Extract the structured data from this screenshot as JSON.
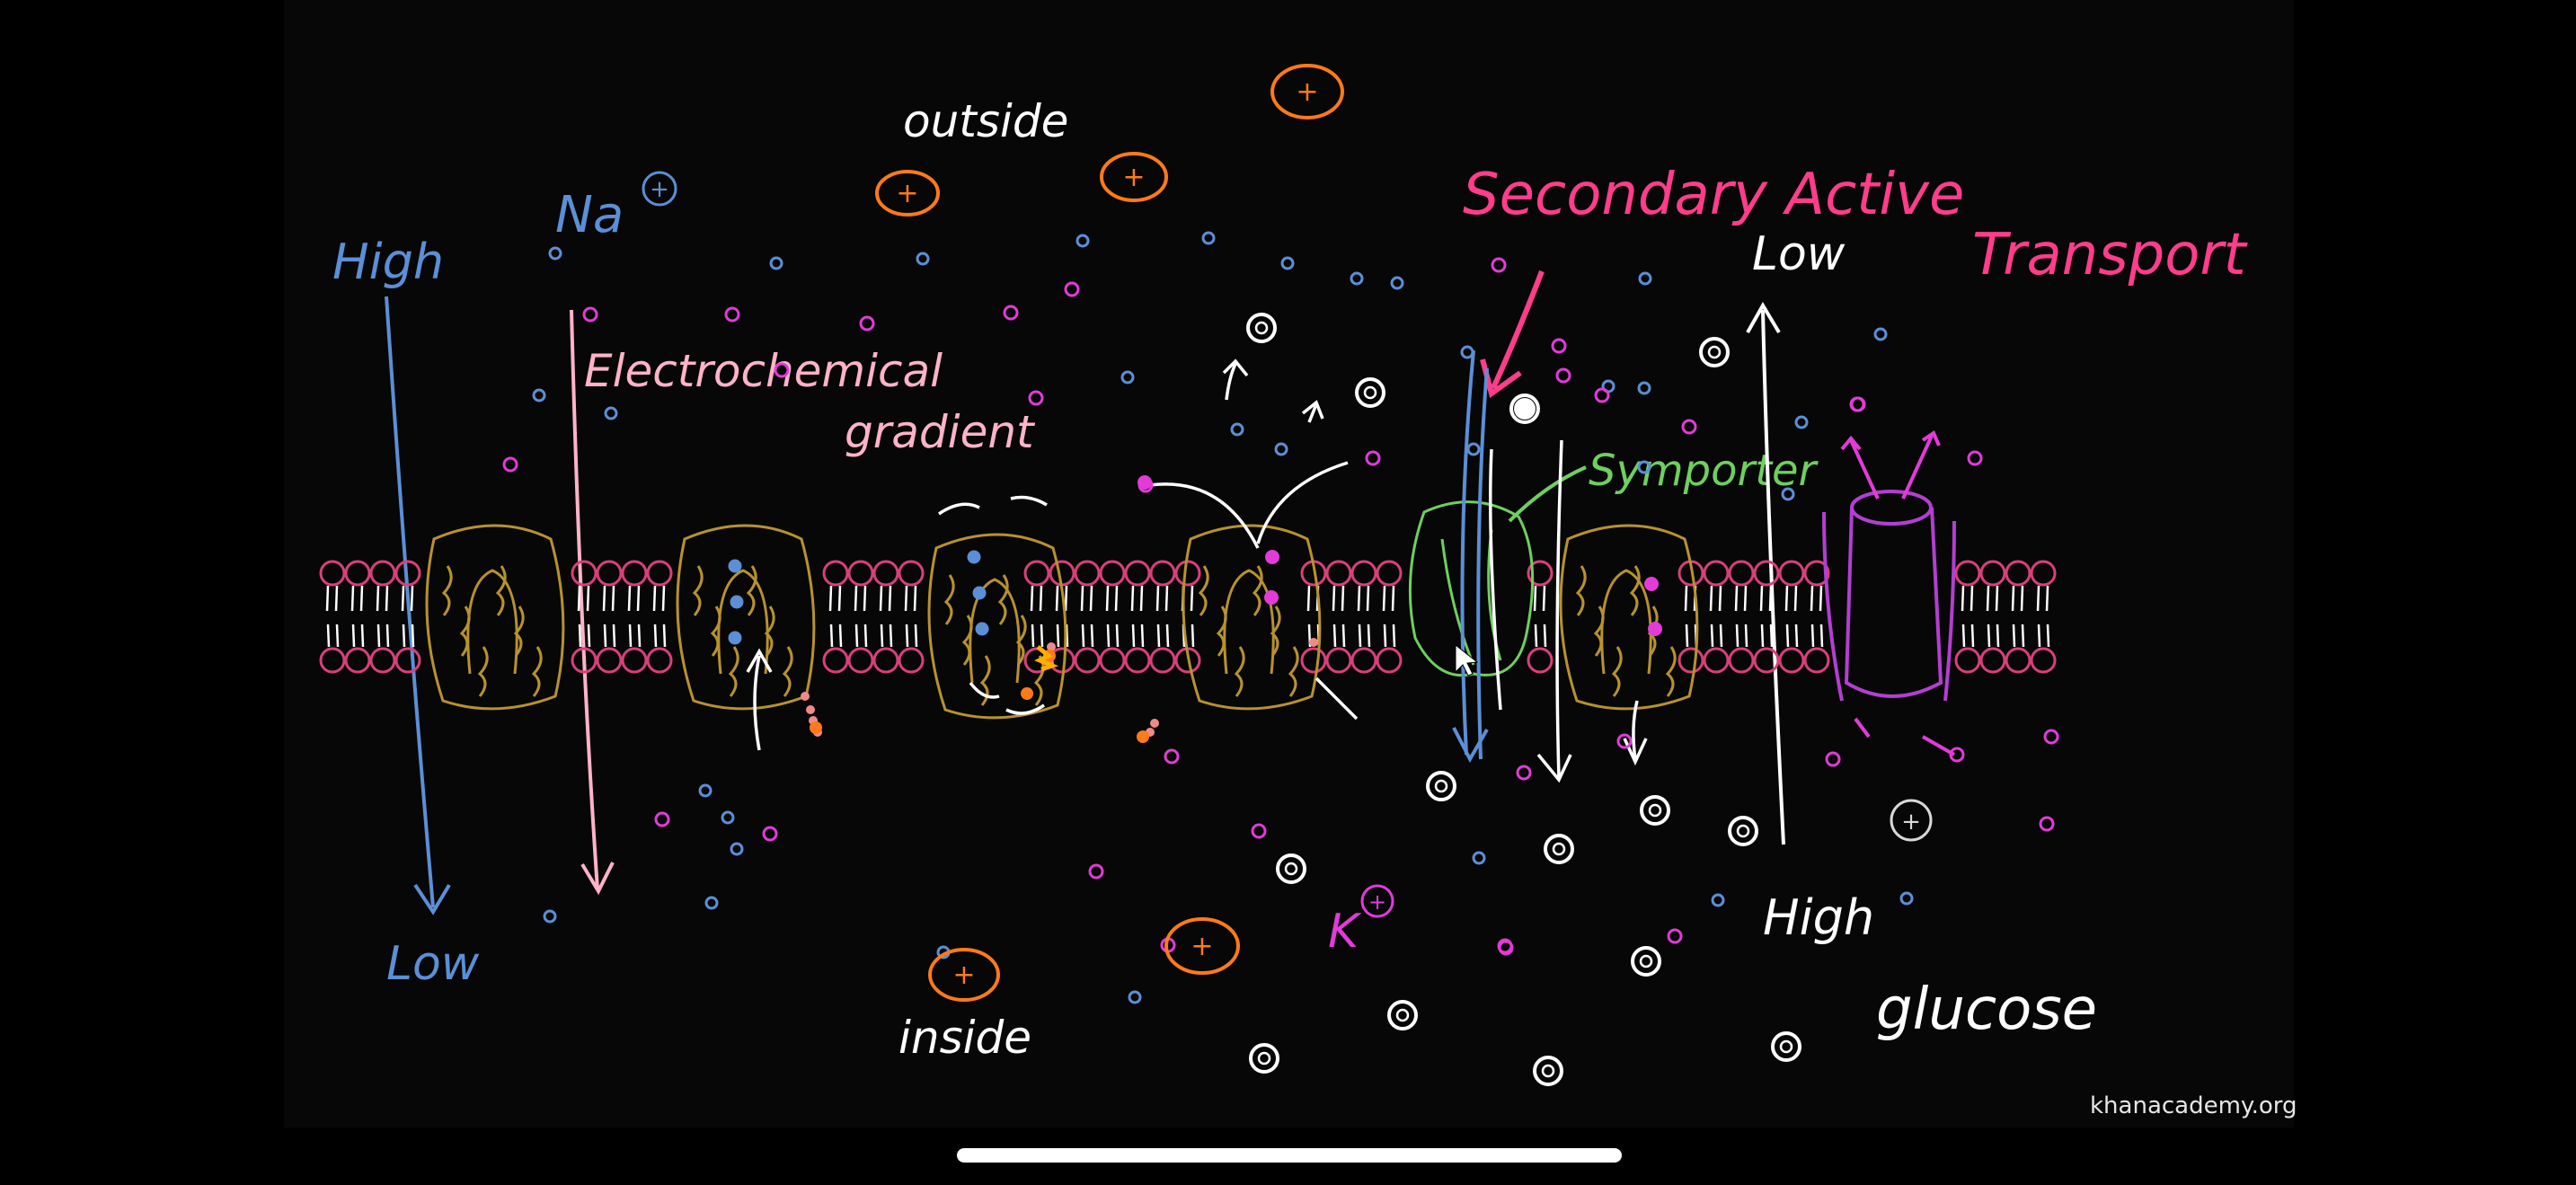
{
  "labels": {
    "outside": "outside",
    "inside": "inside",
    "high_left": "High",
    "low_left": "Low",
    "na": "Na",
    "k": "K",
    "electrochemical": "Electrochemical",
    "gradient": "gradient",
    "title_line1": "Secondary Active",
    "title_line2": "Transport",
    "low_right": "Low",
    "high_right": "High",
    "symporter": "Symporter",
    "glucose": "glucose",
    "plus": "+"
  },
  "watermark": "khanacademy.org",
  "colors": {
    "background": "#070707",
    "sodium": "#5b8fd6",
    "potassium": "#e23bd8",
    "glucose": "#ffffff",
    "protein": "#b8922e",
    "lipid": "#d8407a",
    "symporter": "#6fcf5f",
    "title": "#ff3d8b",
    "orange_ion": "#ff7a18",
    "channel": "#b23fd1",
    "gradient_text": "#ffb3c8"
  },
  "icons": [
    "cursor-arrow-icon"
  ]
}
